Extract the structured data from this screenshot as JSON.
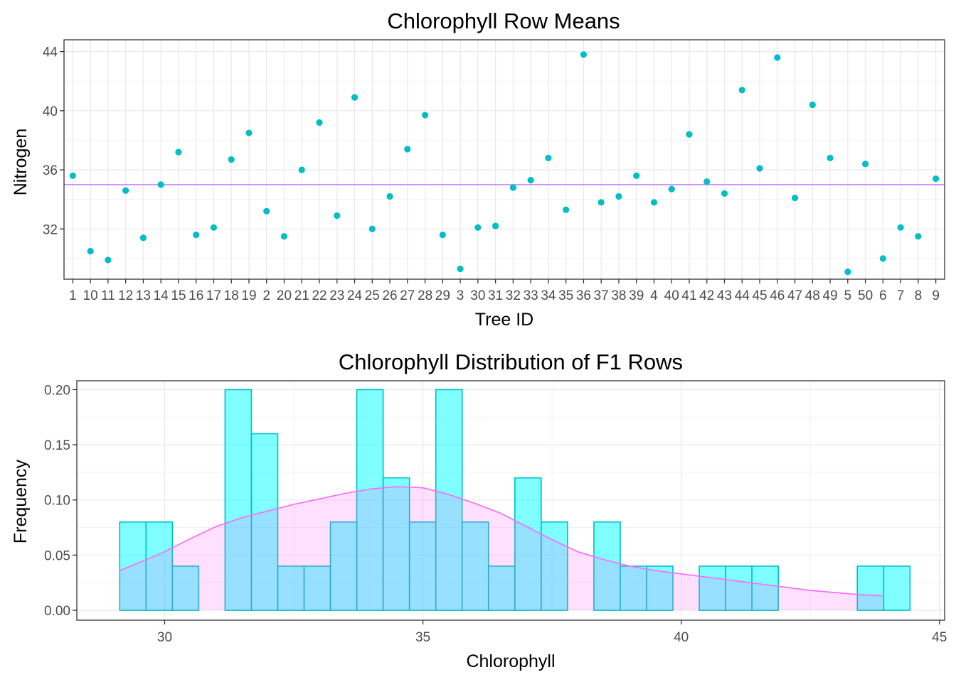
{
  "chart_data": [
    {
      "type": "scatter",
      "title": "Chlorophyll Row Means",
      "xlabel": "Tree ID",
      "ylabel": "Nitrogen",
      "ylim": [
        28.6,
        44.8
      ],
      "yticks": [
        32,
        36,
        40,
        44
      ],
      "grid": true,
      "point_color": "#00BFC4",
      "hline": {
        "value": 35.0,
        "color": "#C77CFF"
      },
      "categories": [
        "1",
        "10",
        "11",
        "12",
        "13",
        "14",
        "15",
        "16",
        "17",
        "18",
        "19",
        "2",
        "20",
        "21",
        "22",
        "23",
        "24",
        "25",
        "26",
        "27",
        "28",
        "29",
        "3",
        "30",
        "31",
        "32",
        "33",
        "34",
        "35",
        "36",
        "37",
        "38",
        "39",
        "4",
        "40",
        "41",
        "42",
        "43",
        "44",
        "45",
        "46",
        "47",
        "48",
        "49",
        "5",
        "50",
        "6",
        "7",
        "8",
        "9"
      ],
      "values": [
        35.6,
        30.5,
        29.9,
        34.6,
        31.4,
        35.0,
        37.2,
        31.6,
        32.1,
        36.7,
        38.5,
        33.2,
        31.5,
        36.0,
        39.2,
        32.9,
        40.9,
        32.0,
        34.2,
        37.4,
        39.7,
        31.6,
        29.3,
        32.1,
        32.2,
        34.8,
        35.3,
        36.8,
        33.3,
        43.8,
        33.8,
        34.2,
        35.6,
        33.8,
        34.7,
        38.4,
        35.2,
        34.4,
        41.4,
        36.1,
        43.6,
        34.1,
        40.4,
        36.8,
        29.1,
        36.4,
        30.0,
        32.1,
        31.5,
        35.4
      ]
    },
    {
      "type": "bar",
      "title": "Chlorophyll Distribution of F1 Rows",
      "xlabel": "Chlorophyll",
      "ylabel": "Frequency",
      "xlim": [
        28.3,
        45.1
      ],
      "ylim": [
        -0.009,
        0.208
      ],
      "xticks": [
        30,
        35,
        40,
        45
      ],
      "yticks": [
        "0.00",
        "0.05",
        "0.10",
        "0.15",
        "0.20"
      ],
      "grid": true,
      "bar_fill": "#00FFFF",
      "bar_edge": "#00BFC4",
      "density_color": "#FF66FF",
      "bin_width": 0.51,
      "bins_start": [
        29.13,
        29.64,
        30.15,
        30.66,
        31.17,
        31.68,
        32.19,
        32.7,
        33.21,
        33.72,
        34.23,
        34.74,
        35.25,
        35.76,
        36.27,
        36.78,
        37.29,
        37.8,
        38.31,
        38.82,
        39.33,
        39.84,
        40.35,
        40.86,
        41.37,
        41.88,
        42.39,
        42.9,
        43.41,
        43.92
      ],
      "frequencies": [
        0.08,
        0.08,
        0.04,
        0,
        0.2,
        0.16,
        0.04,
        0.04,
        0.08,
        0.2,
        0.12,
        0.08,
        0.2,
        0.08,
        0.04,
        0.12,
        0.08,
        0,
        0.08,
        0.04,
        0.04,
        0,
        0.04,
        0.04,
        0.04,
        0,
        0,
        0,
        0.04,
        0.04
      ],
      "density": {
        "x": [
          29.13,
          29.6,
          30.0,
          30.5,
          31.0,
          31.5,
          32.0,
          32.5,
          33.0,
          33.5,
          34.0,
          34.5,
          35.0,
          35.5,
          36.0,
          36.5,
          37.0,
          37.5,
          38.0,
          38.5,
          39.0,
          39.5,
          40.0,
          40.5,
          41.0,
          41.5,
          42.0,
          42.5,
          43.0,
          43.5,
          43.9
        ],
        "y": [
          0.036,
          0.045,
          0.053,
          0.065,
          0.076,
          0.084,
          0.09,
          0.096,
          0.101,
          0.106,
          0.11,
          0.112,
          0.111,
          0.105,
          0.097,
          0.088,
          0.076,
          0.064,
          0.053,
          0.046,
          0.04,
          0.036,
          0.033,
          0.03,
          0.027,
          0.024,
          0.021,
          0.018,
          0.016,
          0.014,
          0.013
        ]
      }
    }
  ]
}
